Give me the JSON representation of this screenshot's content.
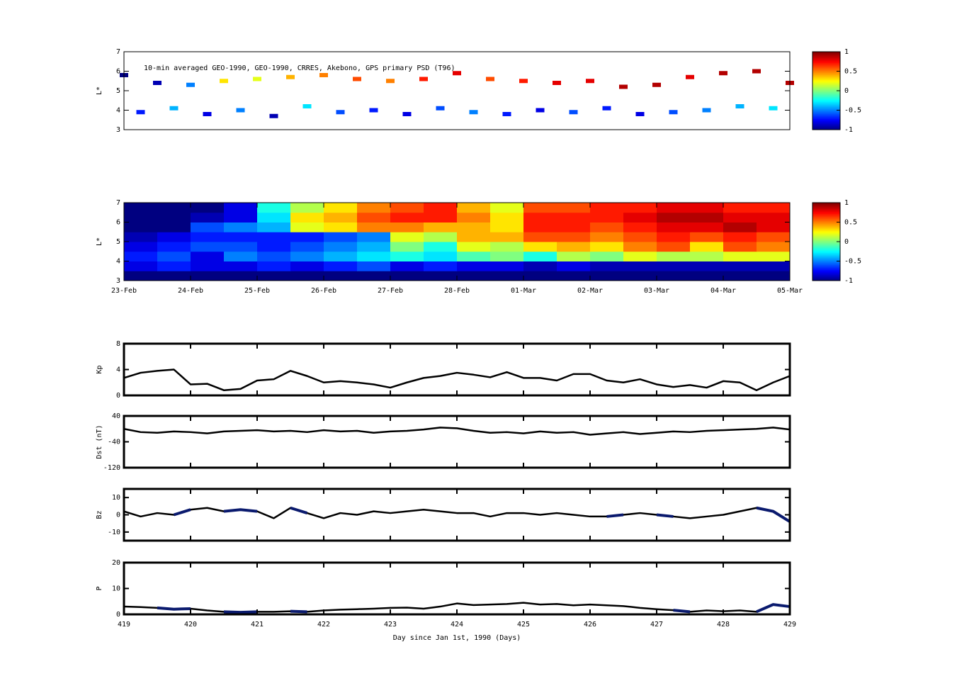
{
  "chart_data": [
    {
      "type": "scatter",
      "title": "10-min averaged GEO-1990, GEO-1990, CRRES, Akebono, GPS  primary PSD (T96)",
      "ylabel": "L*",
      "xlim": [
        419,
        429
      ],
      "ylim": [
        3,
        7
      ],
      "yticks": [
        3,
        4,
        5,
        6,
        7
      ],
      "x": [
        419,
        419.5,
        420,
        420.5,
        421,
        421.5,
        422,
        422.5,
        423,
        423.5,
        424,
        424.5,
        425,
        425.5,
        426,
        426.5,
        427,
        427.5,
        428,
        428.5,
        429,
        419.25,
        419.75,
        420.25,
        420.75,
        421.25,
        421.75,
        422.25,
        422.75,
        423.25,
        423.75,
        424.25,
        424.75,
        425.25,
        425.75,
        426.25,
        426.75,
        427.25,
        427.75,
        428.25,
        428.75
      ],
      "y": [
        5.8,
        5.4,
        5.3,
        5.5,
        5.6,
        5.7,
        5.8,
        5.6,
        5.5,
        5.6,
        5.9,
        5.6,
        5.5,
        5.4,
        5.5,
        5.2,
        5.3,
        5.7,
        5.9,
        6.0,
        5.4,
        3.9,
        4.1,
        3.8,
        4.0,
        3.7,
        4.2,
        3.9,
        4.0,
        3.8,
        4.1,
        3.9,
        3.8,
        4.0,
        3.9,
        4.1,
        3.8,
        3.9,
        4.0,
        4.2,
        4.1
      ],
      "c": [
        -1,
        -0.9,
        -0.5,
        0.3,
        0.2,
        0.4,
        0.5,
        0.6,
        0.5,
        0.7,
        0.8,
        0.6,
        0.7,
        0.8,
        0.8,
        0.9,
        0.9,
        0.8,
        0.9,
        0.9,
        0.9,
        -0.7,
        -0.4,
        -0.8,
        -0.5,
        -0.9,
        -0.3,
        -0.6,
        -0.7,
        -0.8,
        -0.6,
        -0.5,
        -0.7,
        -0.8,
        -0.6,
        -0.7,
        -0.8,
        -0.6,
        -0.5,
        -0.4,
        -0.3
      ],
      "colorbar": {
        "clim": [
          -1,
          1
        ],
        "ticks": [
          1,
          0.5,
          0,
          -0.5,
          -1
        ]
      }
    },
    {
      "type": "heatmap",
      "ylabel": "L*",
      "xlim": [
        419,
        429
      ],
      "ylim": [
        3,
        7
      ],
      "yticks": [
        3,
        4,
        5,
        6,
        7
      ],
      "xticks": [
        {
          "value": 419,
          "label": "23-Feb"
        },
        {
          "value": 420,
          "label": "24-Feb"
        },
        {
          "value": 421,
          "label": "25-Feb"
        },
        {
          "value": 422,
          "label": "26-Feb"
        },
        {
          "value": 423,
          "label": "27-Feb"
        },
        {
          "value": 424,
          "label": "28-Feb"
        },
        {
          "value": 425,
          "label": "01-Mar"
        },
        {
          "value": 426,
          "label": "02-Mar"
        },
        {
          "value": 427,
          "label": "03-Mar"
        },
        {
          "value": 428,
          "label": "04-Mar"
        },
        {
          "value": 429,
          "label": "05-Mar"
        }
      ],
      "xbins": [
        419,
        419.5,
        420,
        420.5,
        421,
        421.5,
        422,
        422.5,
        423,
        423.5,
        424,
        424.5,
        425,
        425.5,
        426,
        426.5,
        427,
        427.5,
        428,
        428.5,
        429
      ],
      "ybins": [
        3,
        3.5,
        4,
        4.5,
        5,
        5.5,
        6,
        6.5,
        7
      ],
      "z": [
        [
          -1,
          -1,
          -1,
          -1,
          -1,
          -1,
          -1,
          -1,
          -1,
          -1,
          -1,
          -1,
          -1,
          -1,
          -1,
          -1,
          -1,
          -1,
          -1,
          -1
        ],
        [
          -0.8,
          -0.7,
          -0.8,
          -0.8,
          -0.7,
          -0.8,
          -0.7,
          -0.6,
          -0.8,
          -0.7,
          -0.8,
          -0.8,
          -0.9,
          -0.8,
          -0.9,
          -0.9,
          -0.9,
          -0.9,
          -0.9,
          -0.9
        ],
        [
          -0.7,
          -0.6,
          -0.8,
          -0.5,
          -0.6,
          -0.5,
          -0.4,
          -0.3,
          -0.2,
          -0.3,
          -0.1,
          0,
          -0.2,
          0.1,
          0,
          0.2,
          0.1,
          0.1,
          0.2,
          0.2
        ],
        [
          -0.8,
          -0.7,
          -0.6,
          -0.6,
          -0.7,
          -0.6,
          -0.5,
          -0.4,
          0,
          -0.2,
          0.2,
          0.1,
          0.3,
          0.4,
          0.3,
          0.5,
          0.6,
          0.3,
          0.6,
          0.5
        ],
        [
          -0.9,
          -0.8,
          -0.7,
          -0.7,
          -0.7,
          -0.7,
          -0.6,
          -0.5,
          0.2,
          0.1,
          0.4,
          0.4,
          0.6,
          0.6,
          0.5,
          0.6,
          0.7,
          0.6,
          0.7,
          0.6
        ],
        [
          -1,
          -1,
          -0.6,
          -0.5,
          -0.4,
          0.2,
          0.3,
          0.5,
          0.5,
          0.4,
          0.4,
          0.3,
          0.7,
          0.7,
          0.6,
          0.7,
          0.8,
          0.8,
          0.9,
          0.8
        ],
        [
          -1,
          -1,
          -0.9,
          -0.8,
          -0.3,
          0.3,
          0.4,
          0.6,
          0.7,
          0.7,
          0.5,
          0.3,
          0.7,
          0.7,
          0.7,
          0.8,
          0.9,
          0.9,
          0.8,
          0.8
        ],
        [
          -1,
          -1,
          -1,
          -0.8,
          -0.2,
          0.1,
          0.3,
          0.5,
          0.6,
          0.7,
          0.4,
          0.2,
          0.6,
          0.6,
          0.7,
          0.7,
          0.8,
          0.8,
          0.7,
          0.7
        ]
      ],
      "colorbar": {
        "clim": [
          -1,
          1
        ],
        "ticks": [
          1,
          0.5,
          0,
          -0.5,
          -1
        ]
      }
    },
    {
      "type": "line",
      "ylabel": "Kp",
      "xlim": [
        419,
        429
      ],
      "ylim": [
        0,
        8
      ],
      "yticks": [
        0,
        4,
        8
      ],
      "xticks": [
        419,
        420,
        421,
        422,
        423,
        424,
        425,
        426,
        427,
        428,
        429
      ],
      "xticklabels": false,
      "x": [
        419,
        419.25,
        419.5,
        419.75,
        420,
        420.25,
        420.5,
        420.75,
        421,
        421.25,
        421.5,
        421.75,
        422,
        422.25,
        422.5,
        422.75,
        423,
        423.25,
        423.5,
        423.75,
        424,
        424.25,
        424.5,
        424.75,
        425,
        425.25,
        425.5,
        425.75,
        426,
        426.25,
        426.5,
        426.75,
        427,
        427.25,
        427.5,
        427.75,
        428,
        428.25,
        428.5,
        428.75,
        429
      ],
      "series": [
        {
          "color": "#000000",
          "values": [
            2.7,
            3.5,
            3.8,
            4,
            1.7,
            1.8,
            0.8,
            1,
            2.3,
            2.5,
            3.8,
            3,
            2,
            2.2,
            2,
            1.7,
            1.2,
            2,
            2.7,
            3,
            3.5,
            3.2,
            2.8,
            3.6,
            2.7,
            2.7,
            2.3,
            3.3,
            3.3,
            2.3,
            2,
            2.5,
            1.7,
            1.3,
            1.6,
            1.2,
            2.2,
            2,
            0.8,
            2,
            3
          ]
        }
      ]
    },
    {
      "type": "line",
      "ylabel": "Dst (nT)",
      "xlim": [
        419,
        429
      ],
      "ylim": [
        -120,
        40
      ],
      "yticks": [
        -120,
        -40,
        40
      ],
      "xticks": [
        419,
        420,
        421,
        422,
        423,
        424,
        425,
        426,
        427,
        428,
        429
      ],
      "xticklabels": false,
      "x": [
        419,
        419.25,
        419.5,
        419.75,
        420,
        420.25,
        420.5,
        420.75,
        421,
        421.25,
        421.5,
        421.75,
        422,
        422.25,
        422.5,
        422.75,
        423,
        423.25,
        423.5,
        423.75,
        424,
        424.25,
        424.5,
        424.75,
        425,
        425.25,
        425.5,
        425.75,
        426,
        426.25,
        426.5,
        426.75,
        427,
        427.25,
        427.5,
        427.75,
        428,
        428.25,
        428.5,
        428.75,
        429
      ],
      "series": [
        {
          "color": "#000000",
          "values": [
            0,
            -10,
            -12,
            -8,
            -10,
            -14,
            -8,
            -6,
            -4,
            -8,
            -6,
            -10,
            -4,
            -8,
            -6,
            -12,
            -8,
            -6,
            -2,
            4,
            2,
            -6,
            -12,
            -10,
            -14,
            -8,
            -12,
            -10,
            -18,
            -14,
            -10,
            -16,
            -12,
            -8,
            -10,
            -6,
            -4,
            -2,
            0,
            4,
            -2
          ]
        }
      ]
    },
    {
      "type": "line",
      "ylabel": "Bz",
      "xlim": [
        419,
        429
      ],
      "ylim": [
        -15,
        15
      ],
      "yticks": [
        -10,
        0,
        10
      ],
      "xticks": [
        419,
        420,
        421,
        422,
        423,
        424,
        425,
        426,
        427,
        428,
        429
      ],
      "xticklabels": false,
      "x": [
        419,
        419.25,
        419.5,
        419.75,
        420,
        420.25,
        420.5,
        420.75,
        421,
        421.25,
        421.5,
        421.75,
        422,
        422.25,
        422.5,
        422.75,
        423,
        423.25,
        423.5,
        423.75,
        424,
        424.25,
        424.5,
        424.75,
        425,
        425.25,
        425.5,
        425.75,
        426,
        426.25,
        426.5,
        426.75,
        427,
        427.25,
        427.5,
        427.75,
        428,
        428.25,
        428.5,
        428.75,
        429
      ],
      "series": [
        {
          "color": "#000000",
          "values": [
            2,
            -1,
            1,
            0,
            3,
            4,
            2,
            3,
            2,
            -2,
            4,
            1,
            -2,
            1,
            0,
            2,
            1,
            2,
            3,
            2,
            1,
            1,
            -1,
            1,
            1,
            0,
            1,
            0,
            -1,
            -1,
            0,
            1,
            0,
            -1,
            -2,
            -1,
            0,
            2,
            4,
            2,
            -4
          ]
        },
        {
          "color": "#0a1a6e",
          "values": [
            null,
            null,
            null,
            0,
            3,
            null,
            2,
            3,
            2,
            null,
            4,
            1,
            null,
            null,
            null,
            null,
            null,
            null,
            null,
            null,
            null,
            null,
            null,
            null,
            null,
            null,
            null,
            null,
            null,
            -1,
            0,
            null,
            0,
            -1,
            null,
            null,
            null,
            null,
            4,
            2,
            -4
          ]
        }
      ]
    },
    {
      "type": "line",
      "ylabel": "P",
      "xlabel": "Day since Jan 1st, 1990 (Days)",
      "xlim": [
        419,
        429
      ],
      "ylim": [
        0,
        20
      ],
      "yticks": [
        0,
        10,
        20
      ],
      "xticks": [
        419,
        420,
        421,
        422,
        423,
        424,
        425,
        426,
        427,
        428,
        429
      ],
      "x": [
        419,
        419.25,
        419.5,
        419.75,
        420,
        420.25,
        420.5,
        420.75,
        421,
        421.25,
        421.5,
        421.75,
        422,
        422.25,
        422.5,
        422.75,
        423,
        423.25,
        423.5,
        423.75,
        424,
        424.25,
        424.5,
        424.75,
        425,
        425.25,
        425.5,
        425.75,
        426,
        426.25,
        426.5,
        426.75,
        427,
        427.25,
        427.5,
        427.75,
        428,
        428.25,
        428.5,
        428.75,
        429
      ],
      "series": [
        {
          "color": "#000000",
          "values": [
            3,
            2.8,
            2.5,
            2,
            2.2,
            1.5,
            1,
            0.8,
            1,
            1,
            1.2,
            1,
            1.5,
            1.8,
            2,
            2.2,
            2.5,
            2.6,
            2.2,
            3,
            4.2,
            3.6,
            3.8,
            4,
            4.5,
            3.8,
            4,
            3.5,
            3.8,
            3.5,
            3.2,
            2.5,
            2,
            1.6,
            1,
            1.5,
            1.2,
            1.5,
            1,
            3.8,
            3
          ]
        },
        {
          "color": "#0a1a6e",
          "values": [
            null,
            null,
            2.5,
            2,
            2.2,
            null,
            1,
            0.8,
            1,
            null,
            1.2,
            1,
            null,
            null,
            null,
            null,
            null,
            null,
            null,
            null,
            null,
            null,
            null,
            null,
            null,
            null,
            null,
            null,
            null,
            null,
            null,
            null,
            null,
            1.6,
            1,
            null,
            null,
            null,
            1,
            3.8,
            3
          ]
        }
      ]
    }
  ]
}
